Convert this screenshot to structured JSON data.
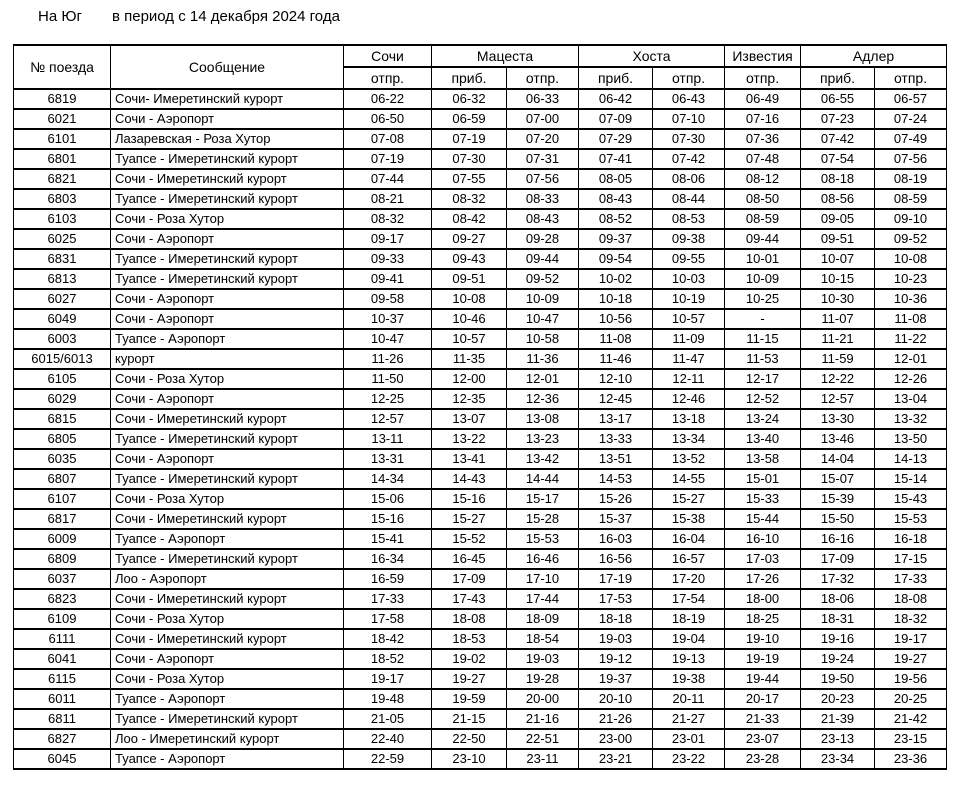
{
  "title": {
    "direction": "На Юг",
    "period": "в период с 14 декабря 2024 года"
  },
  "table": {
    "header": {
      "train_no": "№ поезда",
      "route": "Сообщение",
      "stations": [
        {
          "name": "Сочи",
          "cols": [
            "отпр."
          ]
        },
        {
          "name": "Мацеста",
          "cols": [
            "приб.",
            "отпр."
          ]
        },
        {
          "name": "Хоста",
          "cols": [
            "приб.",
            "отпр."
          ]
        },
        {
          "name": "Известия",
          "cols": [
            "отпр."
          ]
        },
        {
          "name": "Адлер",
          "cols": [
            "приб.",
            "отпр."
          ]
        }
      ],
      "sub_labels": [
        "отпр.",
        "приб.",
        "отпр.",
        "приб.",
        "отпр.",
        "отпр.",
        "приб.",
        "отпр."
      ]
    },
    "rows": [
      [
        "6819",
        "Сочи- Имеретинский курорт",
        "06-22",
        "06-32",
        "06-33",
        "06-42",
        "06-43",
        "06-49",
        "06-55",
        "06-57"
      ],
      [
        "6021",
        "Сочи - Аэропорт",
        "06-50",
        "06-59",
        "07-00",
        "07-09",
        "07-10",
        "07-16",
        "07-23",
        "07-24"
      ],
      [
        "6101",
        "Лазаревская - Роза Хутор",
        "07-08",
        "07-19",
        "07-20",
        "07-29",
        "07-30",
        "07-36",
        "07-42",
        "07-49"
      ],
      [
        "6801",
        "Туапсе - Имеретинский курорт",
        "07-19",
        "07-30",
        "07-31",
        "07-41",
        "07-42",
        "07-48",
        "07-54",
        "07-56"
      ],
      [
        "6821",
        "Сочи - Имеретинский курорт",
        "07-44",
        "07-55",
        "07-56",
        "08-05",
        "08-06",
        "08-12",
        "08-18",
        "08-19"
      ],
      [
        "6803",
        "Туапсе - Имеретинский курорт",
        "08-21",
        "08-32",
        "08-33",
        "08-43",
        "08-44",
        "08-50",
        "08-56",
        "08-59"
      ],
      [
        "6103",
        "Сочи - Роза Хутор",
        "08-32",
        "08-42",
        "08-43",
        "08-52",
        "08-53",
        "08-59",
        "09-05",
        "09-10"
      ],
      [
        "6025",
        "Сочи - Аэропорт",
        "09-17",
        "09-27",
        "09-28",
        "09-37",
        "09-38",
        "09-44",
        "09-51",
        "09-52"
      ],
      [
        "6831",
        "Туапсе - Имеретинский курорт",
        "09-33",
        "09-43",
        "09-44",
        "09-54",
        "09-55",
        "10-01",
        "10-07",
        "10-08"
      ],
      [
        "6813",
        "Туапсе - Имеретинский курорт",
        "09-41",
        "09-51",
        "09-52",
        "10-02",
        "10-03",
        "10-09",
        "10-15",
        "10-23"
      ],
      [
        "6027",
        "Сочи - Аэропорт",
        "09-58",
        "10-08",
        "10-09",
        "10-18",
        "10-19",
        "10-25",
        "10-30",
        "10-36"
      ],
      [
        "6049",
        "Сочи - Аэропорт",
        "10-37",
        "10-46",
        "10-47",
        "10-56",
        "10-57",
        "-",
        "11-07",
        "11-08"
      ],
      [
        "6003",
        "Туапсе - Аэропорт",
        "10-47",
        "10-57",
        "10-58",
        "11-08",
        "11-09",
        "11-15",
        "11-21",
        "11-22"
      ],
      [
        "6015/6013",
        "курорт",
        "11-26",
        "11-35",
        "11-36",
        "11-46",
        "11-47",
        "11-53",
        "11-59",
        "12-01"
      ],
      [
        "6105",
        "Сочи - Роза Хутор",
        "11-50",
        "12-00",
        "12-01",
        "12-10",
        "12-11",
        "12-17",
        "12-22",
        "12-26"
      ],
      [
        "6029",
        "Сочи - Аэропорт",
        "12-25",
        "12-35",
        "12-36",
        "12-45",
        "12-46",
        "12-52",
        "12-57",
        "13-04"
      ],
      [
        "6815",
        "Сочи - Имеретинский курорт",
        "12-57",
        "13-07",
        "13-08",
        "13-17",
        "13-18",
        "13-24",
        "13-30",
        "13-32"
      ],
      [
        "6805",
        "Туапсе - Имеретинский курорт",
        "13-11",
        "13-22",
        "13-23",
        "13-33",
        "13-34",
        "13-40",
        "13-46",
        "13-50"
      ],
      [
        "6035",
        "Сочи - Аэропорт",
        "13-31",
        "13-41",
        "13-42",
        "13-51",
        "13-52",
        "13-58",
        "14-04",
        "14-13"
      ],
      [
        "6807",
        "Туапсе - Имеретинский курорт",
        "14-34",
        "14-43",
        "14-44",
        "14-53",
        "14-55",
        "15-01",
        "15-07",
        "15-14"
      ],
      [
        "6107",
        "Сочи - Роза Хутор",
        "15-06",
        "15-16",
        "15-17",
        "15-26",
        "15-27",
        "15-33",
        "15-39",
        "15-43"
      ],
      [
        "6817",
        "Сочи - Имеретинский курорт",
        "15-16",
        "15-27",
        "15-28",
        "15-37",
        "15-38",
        "15-44",
        "15-50",
        "15-53"
      ],
      [
        "6009",
        "Туапсе - Аэропорт",
        "15-41",
        "15-52",
        "15-53",
        "16-03",
        "16-04",
        "16-10",
        "16-16",
        "16-18"
      ],
      [
        "6809",
        "Туапсе - Имеретинский курорт",
        "16-34",
        "16-45",
        "16-46",
        "16-56",
        "16-57",
        "17-03",
        "17-09",
        "17-15"
      ],
      [
        "6037",
        "Лоо - Аэропорт",
        "16-59",
        "17-09",
        "17-10",
        "17-19",
        "17-20",
        "17-26",
        "17-32",
        "17-33"
      ],
      [
        "6823",
        "Сочи - Имеретинский курорт",
        "17-33",
        "17-43",
        "17-44",
        "17-53",
        "17-54",
        "18-00",
        "18-06",
        "18-08"
      ],
      [
        "6109",
        "Сочи - Роза Хутор",
        "17-58",
        "18-08",
        "18-09",
        "18-18",
        "18-19",
        "18-25",
        "18-31",
        "18-32"
      ],
      [
        "6111",
        "Сочи - Имеретинский курорт",
        "18-42",
        "18-53",
        "18-54",
        "19-03",
        "19-04",
        "19-10",
        "19-16",
        "19-17"
      ],
      [
        "6041",
        "Сочи - Аэропорт",
        "18-52",
        "19-02",
        "19-03",
        "19-12",
        "19-13",
        "19-19",
        "19-24",
        "19-27"
      ],
      [
        "6115",
        "Сочи - Роза Хутор",
        "19-17",
        "19-27",
        "19-28",
        "19-37",
        "19-38",
        "19-44",
        "19-50",
        "19-56"
      ],
      [
        "6011",
        "Туапсе - Аэропорт",
        "19-48",
        "19-59",
        "20-00",
        "20-10",
        "20-11",
        "20-17",
        "20-23",
        "20-25"
      ],
      [
        "6811",
        "Туапсе - Имеретинский курорт",
        "21-05",
        "21-15",
        "21-16",
        "21-26",
        "21-27",
        "21-33",
        "21-39",
        "21-42"
      ],
      [
        "6827",
        "Лоо - Имеретинский курорт",
        "22-40",
        "22-50",
        "22-51",
        "23-00",
        "23-01",
        "23-07",
        "23-13",
        "23-15"
      ],
      [
        "6045",
        "Туапсе - Аэропорт",
        "22-59",
        "23-10",
        "23-11",
        "23-21",
        "23-22",
        "23-28",
        "23-34",
        "23-36"
      ]
    ]
  }
}
